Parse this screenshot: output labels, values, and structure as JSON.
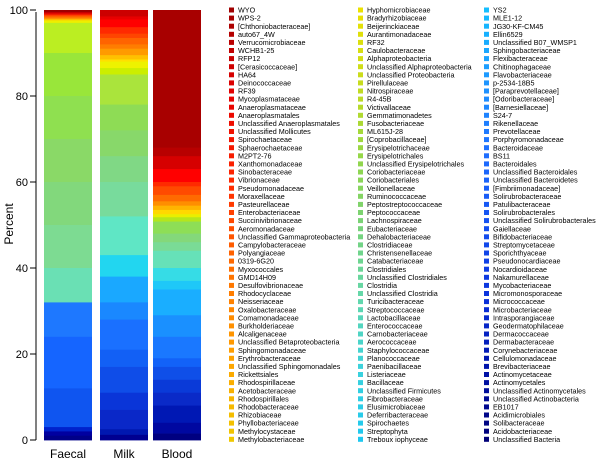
{
  "chart_data": {
    "type": "stacked-bar",
    "ylabel": "Percent",
    "ylim": [
      0,
      100
    ],
    "yticks": [
      "0",
      "20",
      "40",
      "60",
      "80",
      "100"
    ],
    "categories": [
      "Faecal",
      "Milk",
      "Blood"
    ],
    "legend_placement": "right",
    "legend_columns": [
      [
        "WYO",
        "WPS-2",
        "[Chthoniobacteraceae]",
        "auto67_4W",
        "Verrucomicrobiaceae",
        "WCHB1-25",
        "RFP12",
        "[Cerasicoccaceae]",
        "HA64",
        "Deinococcaceae",
        "RF39",
        "Mycoplasmataceae",
        "Anaeroplasmataceae",
        "Anaeroplasmatales",
        "Unclassified Anaeroplasmatales",
        "Unclassified Mollicutes",
        "Spirochaetaceae",
        "Sphaerochaetaceae",
        "M2PT2-76",
        "Xanthomonadaceae",
        "Sinobacteraceae",
        "Vibrionaceae",
        "Pseudomonadaceae",
        "Moraxellaceae",
        "Pasteurellaceae",
        "Enterobacteriaceae",
        "Succinivibrionaceae",
        "Aeromonadaceae",
        "Unclassified Gammaproteobacteria",
        "Campylobacteraceae",
        "Polyangiaceae",
        "0319-6G20",
        "Myxococcales",
        "GMD14H09",
        "Desulfovibrionaceae",
        "Rhodocyclaceae",
        "Neisseriaceae",
        "Oxalobacteraceae",
        "Comamonadaceae",
        "Burkholderiaceae",
        "Alcaligenaceae",
        "Unclassified Betaproteobacteria",
        "Sphingomonadaceae",
        "Erythrobacteraceae",
        "Unclassified Sphingomonadales",
        "Rickettsiales",
        "Rhodospirillaceae",
        "Acetobacteraceae",
        "Rhodospirillales",
        "Rhodobacteraceae",
        "Rhizobiaceae",
        "Phyllobacteriaceae",
        "Methylocystaceae",
        "Methylobacteriaceae"
      ],
      [
        "Hyphomicrobiaceae",
        "Bradyrhizobiaceae",
        "Beijerinckiaceae",
        "Aurantimonadaceae",
        "RF32",
        "Caulobacteraceae",
        "Alphaproteobacteria",
        "Unclassified Alphaproteobacteria",
        "Unclassified Proteobacteria",
        "Pirellulaceae",
        "Nitrospiraceae",
        "R4-45B",
        "Victivallaceae",
        "Gemmatimonadetes",
        "Fusobacteriaceae",
        "ML615J-28",
        "[Coprobacillaceae]",
        "Erysipelotrichaceae",
        "Erysipelotrichales",
        "Unclassified Erysipelotrichales",
        "Coriobacteriaceae",
        "Coriobacteriales",
        "Veillonellaceae",
        "Ruminococcaceae",
        "Peptostreptococcaceae",
        "Peptococcaceae",
        "Lachnospiraceae",
        "Eubacteriaceae",
        "Dehalobacteriaceae",
        "Clostridiaceae",
        "Christensenellaceae",
        "Catabacteriaceae",
        "Clostridiales",
        "Unclassified Clostridiales",
        "Clostridia",
        "Unclassified Clostridia",
        "Turicibacteraceae",
        "Streptococcaceae",
        "Lactobacillaceae",
        "Enterococcaceae",
        "Carnobacteriaceae",
        "Aerococcaceae",
        "Staphylococcaceae",
        "Planococcaceae",
        "Paenibacillaceae",
        "Listeriaceae",
        "Bacillaceae",
        "Unclassified Firmicutes",
        "Fibrobacteraceae",
        "Elusimicrobiaceae",
        "Deferribacteraceae",
        "Spirochaetes",
        "Streptophyta",
        "Treboux iophyceae"
      ],
      [
        "YS2",
        "MLE1-12",
        "JG30-KF-CM45",
        "Ellin6529",
        "Unclassified B07_WMSP1",
        "Sphingobacteriaceae",
        "Flexibacteraceae",
        "Chitinophagaceae",
        "Flavobacteriaceae",
        "p-2534-18B5",
        "[Paraprevotellaceae]",
        "[Odoribacteraceae]",
        "[Barnesiellaceae]",
        "S24-7",
        "Rikenellaceae",
        "Prevotellaceae",
        "Porphyromonadaceae",
        "Bacteroidaceae",
        "BS11",
        "Bacteroidales",
        "Unclassified Bacteroidales",
        "Unclassified Bacteroidetes",
        "[Fimbriimonadaceae]",
        "Solirubrobacteraceae",
        "Patulibacteraceae",
        "Solirubrobacterales",
        "Unclassified Solirubrobacterales",
        "Gaiellaceae",
        "Bifidobacteriaceae",
        "Streptomycetaceae",
        "Sporichthyaceae",
        "Pseudonocardiaceae",
        "Nocardioidaceae",
        "Nakamurellaceae",
        "Mycobacteriaceae",
        "Micromonosporaceae",
        "Micrococcaceae",
        "Microbacteriaceae",
        "Intrasporangiaceae",
        "Geodermatophilaceae",
        "Dermacoccaceae",
        "Dermabacteraceae",
        "Corynebacteriaceae",
        "Cellulomonadaceae",
        "Brevibacteriaceae",
        "Actinomycetaceae",
        "Actinomycetales",
        "Unclassified Actinomycetales",
        "Unclassified Actinobacteria",
        "EB1017",
        "Acidimicrobiales",
        "Solibacteraceae",
        "Acidobacteriaceae",
        "Unclassified Bacteria"
      ]
    ],
    "series": [
      {
        "name": "Faecal",
        "segments": [
          {
            "top": 100,
            "color": "#a00000"
          },
          {
            "top": 99.5,
            "color": "#cc0000"
          },
          {
            "top": 99.2,
            "color": "#ee1100"
          },
          {
            "top": 98.9,
            "color": "#ff4400"
          },
          {
            "top": 98.5,
            "color": "#ff7700"
          },
          {
            "top": 98.0,
            "color": "#ffbb00"
          },
          {
            "top": 97.6,
            "color": "#eeee00"
          },
          {
            "top": 97.0,
            "color": "#bbee22"
          },
          {
            "top": 90,
            "color": "#99e63a"
          },
          {
            "top": 80,
            "color": "#8fe050"
          },
          {
            "top": 70,
            "color": "#8ad967"
          },
          {
            "top": 60,
            "color": "#82d87c"
          },
          {
            "top": 50,
            "color": "#7ddb92"
          },
          {
            "top": 40,
            "color": "#6ae0b4"
          },
          {
            "top": 32,
            "color": "#1e78ff"
          },
          {
            "top": 24,
            "color": "#1565ff"
          },
          {
            "top": 12,
            "color": "#0f55f0"
          },
          {
            "top": 3,
            "color": "#0022cc"
          },
          {
            "top": 2,
            "color": "#0000a0"
          },
          {
            "top": 1,
            "color": "#000088"
          }
        ]
      },
      {
        "name": "Milk",
        "segments": [
          {
            "top": 100,
            "color": "#cc0000"
          },
          {
            "top": 98.5,
            "color": "#e80000"
          },
          {
            "top": 97.8,
            "color": "#ff0000"
          },
          {
            "top": 96.0,
            "color": "#ff2a00"
          },
          {
            "top": 94.5,
            "color": "#ff4500"
          },
          {
            "top": 93.5,
            "color": "#ff6400"
          },
          {
            "top": 92.0,
            "color": "#ff7d00"
          },
          {
            "top": 91.0,
            "color": "#ff9a00"
          },
          {
            "top": 89.5,
            "color": "#ffc000"
          },
          {
            "top": 88.5,
            "color": "#ffe000"
          },
          {
            "top": 88.0,
            "color": "#eef200"
          },
          {
            "top": 86.5,
            "color": "#ccee00"
          },
          {
            "top": 85.0,
            "color": "#aae43c"
          },
          {
            "top": 78,
            "color": "#8edc55"
          },
          {
            "top": 72,
            "color": "#88d86a"
          },
          {
            "top": 66,
            "color": "#80d885"
          },
          {
            "top": 60,
            "color": "#78db9c"
          },
          {
            "top": 52,
            "color": "#5fe6c5"
          },
          {
            "top": 43,
            "color": "#22d6f0"
          },
          {
            "top": 38,
            "color": "#1aa8ff"
          },
          {
            "top": 32,
            "color": "#1a88ff"
          },
          {
            "top": 28,
            "color": "#1a70ff"
          },
          {
            "top": 21,
            "color": "#1260f5"
          },
          {
            "top": 17,
            "color": "#0f4de8"
          },
          {
            "top": 11,
            "color": "#0a35d8"
          },
          {
            "top": 7,
            "color": "#0a28c8"
          },
          {
            "top": 2.5,
            "color": "#0018b0"
          },
          {
            "top": 1.2,
            "color": "#000090"
          }
        ]
      },
      {
        "name": "Blood",
        "segments": [
          {
            "top": 100,
            "color": "#a80000"
          },
          {
            "top": 68,
            "color": "#b80000"
          },
          {
            "top": 66,
            "color": "#d60000"
          },
          {
            "top": 63,
            "color": "#ff0000"
          },
          {
            "top": 60,
            "color": "#ff2a00"
          },
          {
            "top": 59,
            "color": "#ff4a00"
          },
          {
            "top": 57,
            "color": "#ff6a00"
          },
          {
            "top": 55.5,
            "color": "#ff8e00"
          },
          {
            "top": 54.5,
            "color": "#ffb400"
          },
          {
            "top": 53.5,
            "color": "#ffd800"
          },
          {
            "top": 52.5,
            "color": "#e8ef00"
          },
          {
            "top": 51.8,
            "color": "#b4e61c"
          },
          {
            "top": 50.8,
            "color": "#8ede56"
          },
          {
            "top": 48,
            "color": "#84d87a"
          },
          {
            "top": 46,
            "color": "#7adb96"
          },
          {
            "top": 44,
            "color": "#66e1b8"
          },
          {
            "top": 40,
            "color": "#36dce6"
          },
          {
            "top": 37,
            "color": "#1fc8f8"
          },
          {
            "top": 35,
            "color": "#1aaeff"
          },
          {
            "top": 29,
            "color": "#1a90ff"
          },
          {
            "top": 24,
            "color": "#1a78ff"
          },
          {
            "top": 19,
            "color": "#1262f8"
          },
          {
            "top": 17,
            "color": "#0f4fe8"
          },
          {
            "top": 14,
            "color": "#0a3ad8"
          },
          {
            "top": 11,
            "color": "#0a2ac8"
          },
          {
            "top": 8,
            "color": "#0018b4"
          },
          {
            "top": 4,
            "color": "#0008a0"
          },
          {
            "top": 1.5,
            "color": "#000080"
          }
        ]
      }
    ]
  }
}
